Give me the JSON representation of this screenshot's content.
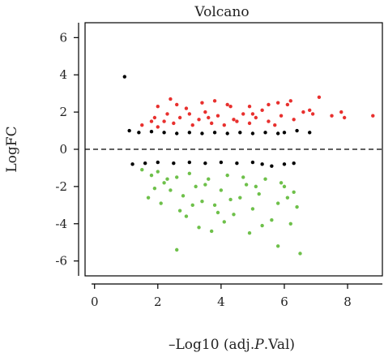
{
  "chart_data": {
    "type": "scatter",
    "title": "Volcano",
    "xlabel_parts": [
      "–Log10 (adj.",
      "P",
      ".Val)"
    ],
    "ylabel": "LogFC",
    "xlim": [
      -0.3,
      9.1
    ],
    "ylim": [
      -6.8,
      6.8
    ],
    "x_ticks": [
      0,
      2,
      4,
      6,
      8
    ],
    "y_ticks": [
      -6,
      -4,
      -2,
      0,
      2,
      4,
      6
    ],
    "reference_line": {
      "y": 0,
      "style": "dashed"
    },
    "series": [
      {
        "color": "#e8302e",
        "role": "up",
        "points": [
          [
            1.5,
            1.3
          ],
          [
            1.8,
            1.5
          ],
          [
            2.0,
            1.2
          ],
          [
            2.3,
            1.9
          ],
          [
            2.5,
            1.4
          ],
          [
            2.7,
            1.7
          ],
          [
            2.9,
            2.2
          ],
          [
            3.1,
            1.3
          ],
          [
            3.3,
            1.6
          ],
          [
            3.5,
            2.0
          ],
          [
            3.7,
            1.4
          ],
          [
            3.9,
            1.8
          ],
          [
            4.1,
            1.3
          ],
          [
            4.3,
            2.3
          ],
          [
            4.5,
            1.5
          ],
          [
            4.7,
            1.9
          ],
          [
            4.9,
            1.4
          ],
          [
            5.1,
            1.7
          ],
          [
            5.3,
            2.1
          ],
          [
            5.5,
            1.5
          ],
          [
            5.7,
            1.3
          ],
          [
            5.9,
            1.8
          ],
          [
            6.1,
            2.4
          ],
          [
            6.3,
            1.6
          ],
          [
            6.6,
            2.0
          ],
          [
            6.9,
            1.9
          ],
          [
            7.1,
            2.8
          ],
          [
            7.5,
            1.8
          ],
          [
            7.8,
            2.0
          ],
          [
            7.9,
            1.7
          ],
          [
            8.8,
            1.8
          ],
          [
            2.6,
            2.4
          ],
          [
            3.4,
            2.5
          ],
          [
            4.2,
            2.4
          ],
          [
            5.8,
            2.5
          ],
          [
            6.8,
            2.1
          ],
          [
            2.4,
            2.7
          ],
          [
            6.2,
            2.6
          ],
          [
            2.0,
            2.3
          ],
          [
            3.8,
            2.6
          ],
          [
            4.9,
            2.3
          ],
          [
            5.5,
            2.4
          ],
          [
            1.9,
            1.7
          ],
          [
            2.2,
            1.5
          ],
          [
            3.0,
            1.9
          ],
          [
            3.6,
            1.7
          ],
          [
            4.4,
            1.6
          ],
          [
            5.0,
            1.9
          ]
        ]
      },
      {
        "color": "#000000",
        "role": "not-significant",
        "points": [
          [
            0.95,
            3.9
          ],
          [
            1.1,
            1.0
          ],
          [
            1.4,
            0.9
          ],
          [
            1.8,
            0.95
          ],
          [
            2.2,
            0.9
          ],
          [
            2.6,
            0.85
          ],
          [
            3.0,
            0.9
          ],
          [
            3.4,
            0.85
          ],
          [
            3.8,
            0.9
          ],
          [
            4.2,
            0.85
          ],
          [
            4.6,
            0.9
          ],
          [
            5.0,
            0.85
          ],
          [
            5.4,
            0.9
          ],
          [
            5.8,
            0.85
          ],
          [
            6.0,
            0.9
          ],
          [
            6.4,
            1.0
          ],
          [
            6.8,
            0.9
          ],
          [
            1.2,
            -0.8
          ],
          [
            1.6,
            -0.75
          ],
          [
            2.0,
            -0.7
          ],
          [
            2.5,
            -0.75
          ],
          [
            3.0,
            -0.7
          ],
          [
            3.5,
            -0.75
          ],
          [
            4.0,
            -0.7
          ],
          [
            4.5,
            -0.75
          ],
          [
            5.0,
            -0.7
          ],
          [
            5.3,
            -0.8
          ],
          [
            5.6,
            -0.9
          ],
          [
            6.0,
            -0.8
          ],
          [
            6.3,
            -0.75
          ]
        ]
      },
      {
        "color": "#6ec04a",
        "role": "down",
        "points": [
          [
            1.5,
            -1.1
          ],
          [
            1.8,
            -1.4
          ],
          [
            2.0,
            -1.2
          ],
          [
            2.2,
            -1.8
          ],
          [
            2.4,
            -2.2
          ],
          [
            2.6,
            -1.5
          ],
          [
            2.8,
            -2.5
          ],
          [
            3.0,
            -1.3
          ],
          [
            3.2,
            -2.0
          ],
          [
            3.4,
            -2.8
          ],
          [
            3.6,
            -1.6
          ],
          [
            3.8,
            -3.0
          ],
          [
            4.0,
            -2.2
          ],
          [
            4.2,
            -1.4
          ],
          [
            4.4,
            -3.5
          ],
          [
            4.6,
            -2.6
          ],
          [
            4.8,
            -1.9
          ],
          [
            5.0,
            -3.2
          ],
          [
            5.2,
            -2.4
          ],
          [
            5.4,
            -1.6
          ],
          [
            5.6,
            -3.8
          ],
          [
            5.8,
            -2.9
          ],
          [
            6.0,
            -2.0
          ],
          [
            6.2,
            -4.0
          ],
          [
            6.4,
            -3.1
          ],
          [
            2.6,
            -5.4
          ],
          [
            5.8,
            -5.2
          ],
          [
            6.5,
            -5.6
          ],
          [
            1.7,
            -2.6
          ],
          [
            2.1,
            -2.9
          ],
          [
            2.9,
            -3.6
          ],
          [
            3.3,
            -4.2
          ],
          [
            3.7,
            -4.4
          ],
          [
            4.1,
            -3.9
          ],
          [
            4.9,
            -4.5
          ],
          [
            5.3,
            -4.1
          ],
          [
            5.1,
            -2.0
          ],
          [
            4.3,
            -2.7
          ],
          [
            3.1,
            -3.0
          ],
          [
            2.3,
            -1.6
          ],
          [
            1.9,
            -2.1
          ],
          [
            3.5,
            -1.9
          ],
          [
            4.7,
            -1.5
          ],
          [
            5.9,
            -1.8
          ],
          [
            6.1,
            -2.6
          ],
          [
            6.3,
            -2.3
          ],
          [
            2.7,
            -3.3
          ],
          [
            3.9,
            -3.4
          ]
        ]
      }
    ],
    "grid": false,
    "legend": "none"
  }
}
